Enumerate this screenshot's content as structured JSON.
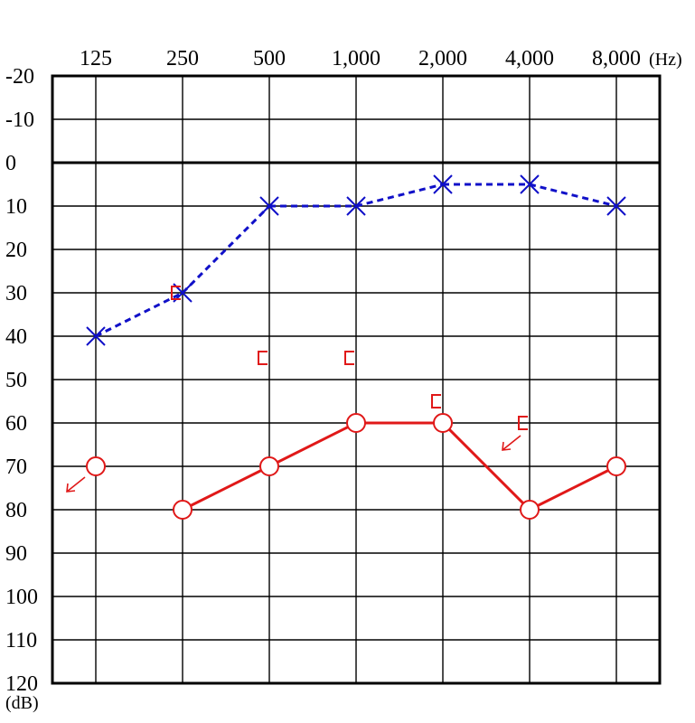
{
  "chart_data": {
    "type": "line",
    "title": "",
    "x_unit": "(Hz)",
    "y_unit": "(dB)",
    "x_ticks": [
      "125",
      "250",
      "500",
      "1,000",
      "2,000",
      "4,000",
      "8,000"
    ],
    "y_ticks": [
      -20,
      -10,
      0,
      10,
      20,
      30,
      40,
      50,
      60,
      70,
      80,
      90,
      100,
      110,
      120
    ],
    "ylim": [
      -20,
      120
    ],
    "y_inverted": true,
    "grid": true,
    "zero_line_bold": true,
    "series": [
      {
        "marker": "x",
        "line_style": "dashed",
        "color": "#1010c8",
        "points": [
          {
            "x": "125",
            "y": 40
          },
          {
            "x": "250",
            "y": 30
          },
          {
            "x": "500",
            "y": 10
          },
          {
            "x": "1,000",
            "y": 10
          },
          {
            "x": "2,000",
            "y": 5
          },
          {
            "x": "4,000",
            "y": 5
          },
          {
            "x": "8,000",
            "y": 10
          }
        ]
      },
      {
        "marker": "o",
        "line_style": "solid",
        "color": "#e01818",
        "points": [
          {
            "x": "125",
            "y": 70,
            "no_response": true
          },
          {
            "x": "250",
            "y": 80,
            "connected": false
          },
          {
            "x": "500",
            "y": 70
          },
          {
            "x": "1,000",
            "y": 60
          },
          {
            "x": "2,000",
            "y": 60
          },
          {
            "x": "4,000",
            "y": 80
          },
          {
            "x": "8,000",
            "y": 70
          }
        ]
      },
      {
        "marker": "bracket",
        "line_style": "none",
        "color": "#e01818",
        "points": [
          {
            "x": "250",
            "y": 30
          },
          {
            "x": "500",
            "y": 45
          },
          {
            "x": "1,000",
            "y": 45
          },
          {
            "x": "2,000",
            "y": 55
          },
          {
            "x": "4,000",
            "y": 60,
            "no_response": true
          }
        ]
      }
    ]
  }
}
